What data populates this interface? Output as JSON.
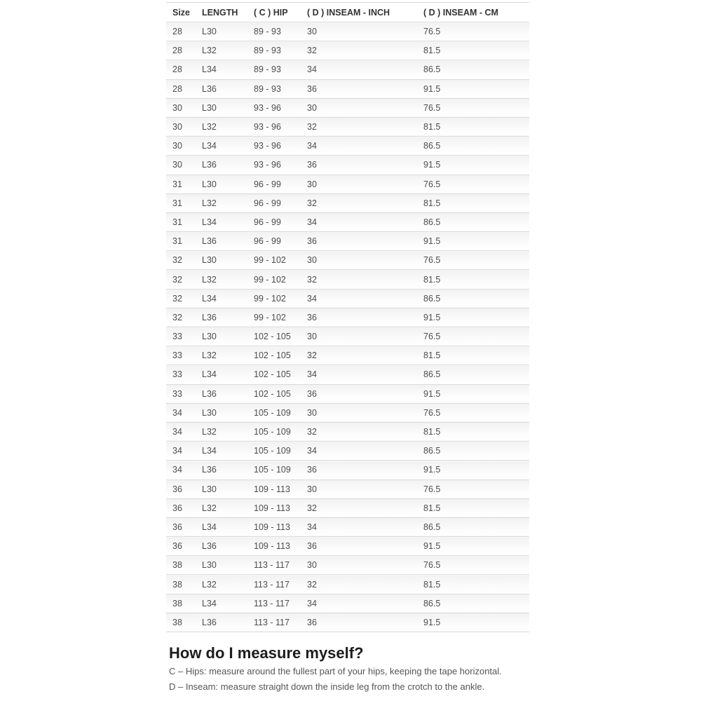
{
  "table": {
    "columns": [
      "Size",
      "LENGTH",
      "( C ) HIP",
      "( D ) INSEAM - INCH",
      "( D ) INSEAM - CM"
    ],
    "rows": [
      [
        "28",
        "L30",
        "89 - 93",
        "30",
        "76.5"
      ],
      [
        "28",
        "L32",
        "89 - 93",
        "32",
        "81.5"
      ],
      [
        "28",
        "L34",
        "89 - 93",
        "34",
        "86.5"
      ],
      [
        "28",
        "L36",
        "89 - 93",
        "36",
        "91.5"
      ],
      [
        "30",
        "L30",
        "93 - 96",
        "30",
        "76.5"
      ],
      [
        "30",
        "L32",
        "93 - 96",
        "32",
        "81.5"
      ],
      [
        "30",
        "L34",
        "93 - 96",
        "34",
        "86.5"
      ],
      [
        "30",
        "L36",
        "93 - 96",
        "36",
        "91.5"
      ],
      [
        "31",
        "L30",
        "96 - 99",
        "30",
        "76.5"
      ],
      [
        "31",
        "L32",
        "96 - 99",
        "32",
        "81.5"
      ],
      [
        "31",
        "L34",
        "96 - 99",
        "34",
        "86.5"
      ],
      [
        "31",
        "L36",
        "96 - 99",
        "36",
        "91.5"
      ],
      [
        "32",
        "L30",
        "99 - 102",
        "30",
        "76.5"
      ],
      [
        "32",
        "L32",
        "99 - 102",
        "32",
        "81.5"
      ],
      [
        "32",
        "L34",
        "99 - 102",
        "34",
        "86.5"
      ],
      [
        "32",
        "L36",
        "99 - 102",
        "36",
        "91.5"
      ],
      [
        "33",
        "L30",
        "102 - 105",
        "30",
        "76.5"
      ],
      [
        "33",
        "L32",
        "102 - 105",
        "32",
        "81.5"
      ],
      [
        "33",
        "L34",
        "102 - 105",
        "34",
        "86.5"
      ],
      [
        "33",
        "L36",
        "102 - 105",
        "36",
        "91.5"
      ],
      [
        "34",
        "L30",
        "105 - 109",
        "30",
        "76.5"
      ],
      [
        "34",
        "L32",
        "105 - 109",
        "32",
        "81.5"
      ],
      [
        "34",
        "L34",
        "105 - 109",
        "34",
        "86.5"
      ],
      [
        "34",
        "L36",
        "105 - 109",
        "36",
        "91.5"
      ],
      [
        "36",
        "L30",
        "109 - 113",
        "30",
        "76.5"
      ],
      [
        "36",
        "L32",
        "109 - 113",
        "32",
        "81.5"
      ],
      [
        "36",
        "L34",
        "109 - 113",
        "34",
        "86.5"
      ],
      [
        "36",
        "L36",
        "109 - 113",
        "36",
        "91.5"
      ],
      [
        "38",
        "L30",
        "113 - 117",
        "30",
        "76.5"
      ],
      [
        "38",
        "L32",
        "113 - 117",
        "32",
        "81.5"
      ],
      [
        "38",
        "L34",
        "113 - 117",
        "34",
        "86.5"
      ],
      [
        "38",
        "L36",
        "113 - 117",
        "36",
        "91.5"
      ]
    ]
  },
  "measure_section": {
    "heading": "How do I measure myself?",
    "lines": [
      "C – Hips: measure around the fullest part of your hips, keeping the tape horizontal.",
      "D – Inseam: measure straight down the inside leg from the crotch to the ankle."
    ]
  },
  "colors": {
    "border": "#dcdcdc",
    "row_gradient_top": "#f2f2f2",
    "row_gradient_bottom": "#fdfdfd",
    "header_text": "#333333",
    "cell_text": "#4d4d4d",
    "heading_text": "#1d1d1d",
    "body_text": "#555555"
  }
}
